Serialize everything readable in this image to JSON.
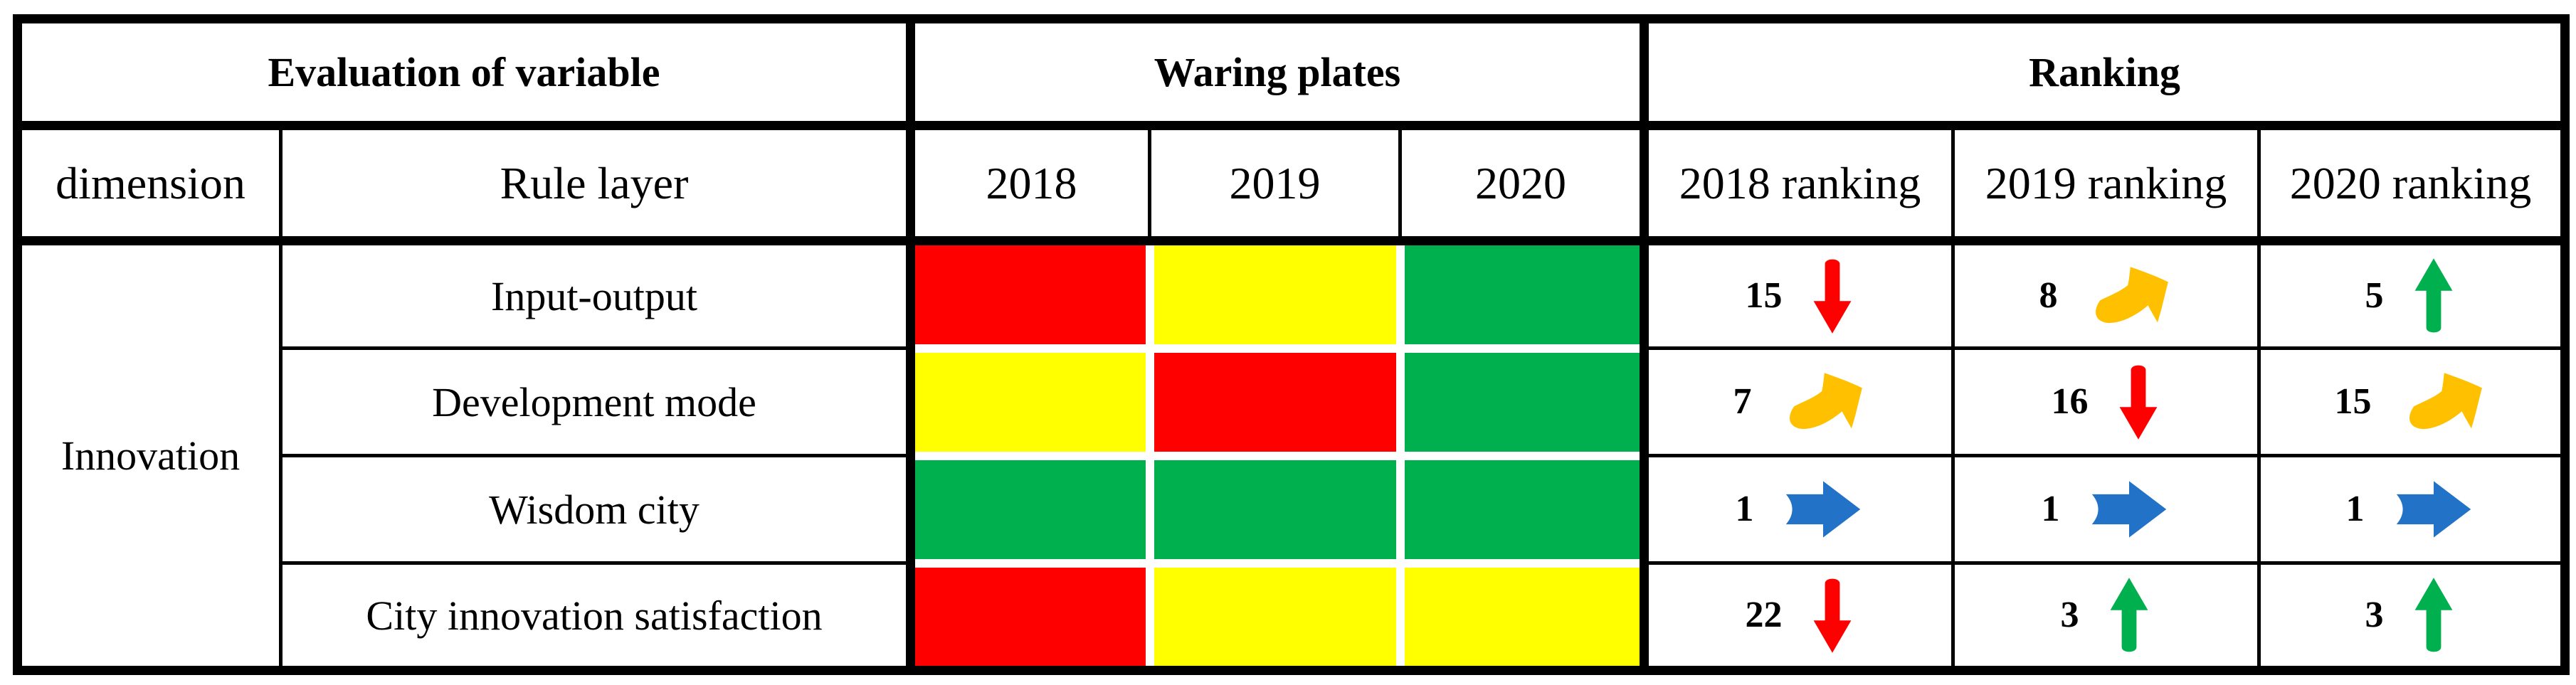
{
  "table": {
    "header_groups": [
      {
        "label": "Evaluation of  variable"
      },
      {
        "label": "Waring plates"
      },
      {
        "label": "Ranking"
      }
    ],
    "columns": {
      "dimension": "dimension",
      "rule_layer": "Rule layer",
      "years": [
        "2018",
        "2019",
        "2020"
      ],
      "ranking_years": [
        "2018 ranking",
        "2019 ranking",
        "2020 ranking"
      ]
    },
    "dimension_value": "Innovation",
    "rows": [
      {
        "rule_layer": "Input-output",
        "plates": [
          "red",
          "yellow",
          "green"
        ],
        "rankings": [
          {
            "value": "15",
            "trend": "down"
          },
          {
            "value": "8",
            "trend": "up-right"
          },
          {
            "value": "5",
            "trend": "up"
          }
        ]
      },
      {
        "rule_layer": "Development mode",
        "plates": [
          "yellow",
          "red",
          "green"
        ],
        "rankings": [
          {
            "value": "7",
            "trend": "up-right"
          },
          {
            "value": "16",
            "trend": "down"
          },
          {
            "value": "15",
            "trend": "up-right"
          }
        ]
      },
      {
        "rule_layer": "Wisdom city",
        "plates": [
          "green",
          "green",
          "green"
        ],
        "rankings": [
          {
            "value": "1",
            "trend": "right"
          },
          {
            "value": "1",
            "trend": "right"
          },
          {
            "value": "1",
            "trend": "right"
          }
        ]
      },
      {
        "rule_layer": "City innovation satisfaction",
        "plates": [
          "red",
          "yellow",
          "yellow"
        ],
        "rankings": [
          {
            "value": "22",
            "trend": "down"
          },
          {
            "value": "3",
            "trend": "up"
          },
          {
            "value": "3",
            "trend": "up"
          }
        ]
      }
    ],
    "colors": {
      "plate_red": "#FF0000",
      "plate_yellow": "#FFFF00",
      "plate_green": "#00B04E",
      "arrow_down_red": "#FF0000",
      "arrow_up_green": "#00B04E",
      "arrow_right_blue": "#2272C8",
      "arrow_up_right_gold": "#FFC000"
    }
  },
  "chart_data": {
    "type": "table",
    "title": "Evaluation of variable / Waring plates / Ranking",
    "columns": [
      "dimension",
      "Rule layer",
      "2018",
      "2019",
      "2020",
      "2018 ranking",
      "2019 ranking",
      "2020 ranking"
    ],
    "rows": [
      [
        "Innovation",
        "Input-output",
        "red",
        "yellow",
        "green",
        "15 down",
        "8 up-right",
        "5 up"
      ],
      [
        "Innovation",
        "Development mode",
        "yellow",
        "red",
        "green",
        "7 up-right",
        "16 down",
        "15 up-right"
      ],
      [
        "Innovation",
        "Wisdom city",
        "green",
        "green",
        "green",
        "1 right",
        "1 right",
        "1 right"
      ],
      [
        "Innovation",
        "City innovation satisfaction",
        "red",
        "yellow",
        "yellow",
        "22 down",
        "3 up",
        "3 up"
      ]
    ]
  }
}
